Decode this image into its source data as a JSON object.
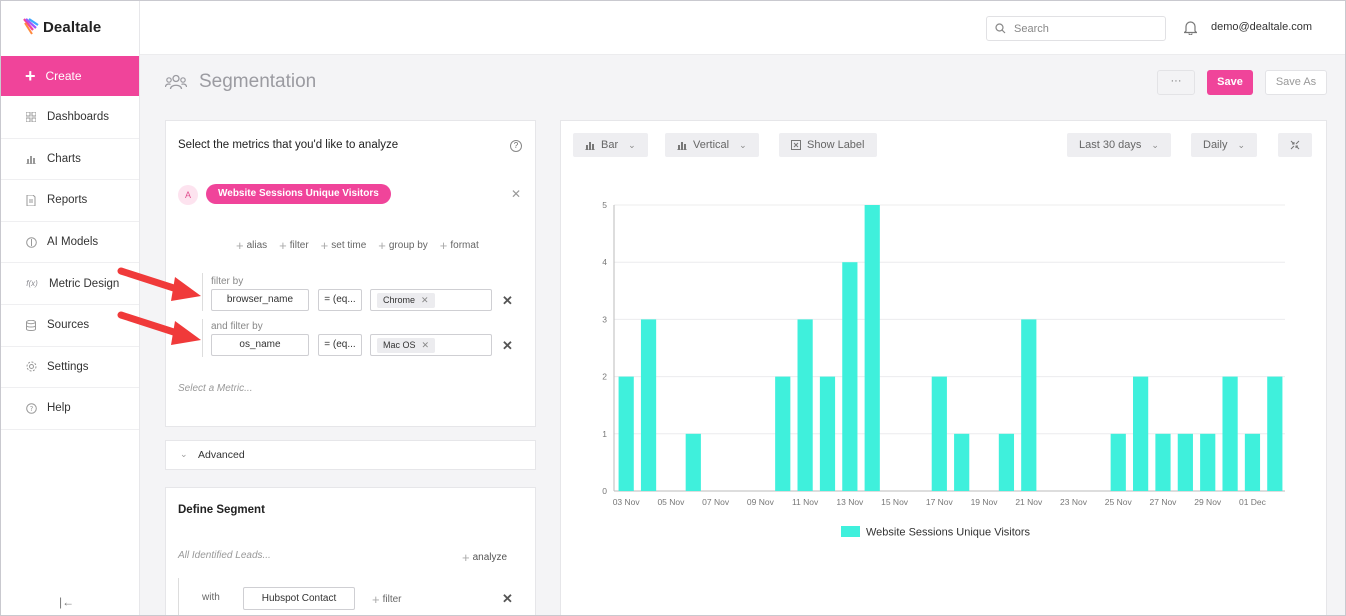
{
  "brand": {
    "name": "Dealtale"
  },
  "sidebar": {
    "create_label": "Create",
    "items": [
      {
        "label": "Dashboards",
        "icon": "grid-icon"
      },
      {
        "label": "Charts",
        "icon": "bar-chart-icon"
      },
      {
        "label": "Reports",
        "icon": "document-icon"
      },
      {
        "label": "AI Models",
        "icon": "ai-icon"
      },
      {
        "label": "Metric Design",
        "icon": "function-icon"
      },
      {
        "label": "Sources",
        "icon": "database-icon"
      },
      {
        "label": "Settings",
        "icon": "gear-icon"
      },
      {
        "label": "Help",
        "icon": "help-icon"
      }
    ],
    "collapse_glyph": "|←"
  },
  "topbar": {
    "search_placeholder": "Search",
    "user_email": "demo@dealtale.com"
  },
  "header": {
    "title": "Segmentation",
    "more_label": "···",
    "save_label": "Save",
    "save_as_label": "Save As"
  },
  "metrics": {
    "heading": "Select the metrics that you'd like to analyze",
    "help_glyph": "?",
    "letter": "A",
    "metric_name": "Website Sessions Unique Visitors",
    "options": [
      "alias",
      "filter",
      "set time",
      "group by",
      "format"
    ],
    "filters": [
      {
        "label": "filter by",
        "field": "browser_name",
        "operator": "= (eq...",
        "value": "Chrome"
      },
      {
        "label": "and filter by",
        "field": "os_name",
        "operator": "= (eq...",
        "value": "Mac OS"
      }
    ],
    "select_placeholder": "Select a Metric..."
  },
  "advanced": {
    "label": "Advanced"
  },
  "segment": {
    "title": "Define Segment",
    "leads_label": "All Identified Leads...",
    "analyze_label": "analyze",
    "with_label": "with",
    "contact_label": "Hubspot Contact",
    "filter_label": "filter"
  },
  "chart_toolbar": {
    "type_label": "Bar",
    "orientation_label": "Vertical",
    "show_label": "Show Label",
    "range_label": "Last 30 days",
    "interval_label": "Daily"
  },
  "colors": {
    "accent": "#f0449a",
    "bar": "#3ff0dc"
  },
  "chart_data": {
    "type": "bar",
    "title": "",
    "xlabel": "",
    "ylabel": "",
    "ylim": [
      0,
      5
    ],
    "yticks": [
      0,
      1,
      2,
      3,
      4,
      5
    ],
    "categories": [
      "03 Nov",
      "04 Nov",
      "05 Nov",
      "06 Nov",
      "07 Nov",
      "08 Nov",
      "09 Nov",
      "10 Nov",
      "11 Nov",
      "12 Nov",
      "13 Nov",
      "14 Nov",
      "15 Nov",
      "16 Nov",
      "17 Nov",
      "18 Nov",
      "19 Nov",
      "20 Nov",
      "21 Nov",
      "22 Nov",
      "23 Nov",
      "24 Nov",
      "25 Nov",
      "26 Nov",
      "27 Nov",
      "28 Nov",
      "29 Nov",
      "30 Nov",
      "01 Dec",
      "02 Dec"
    ],
    "tick_labels": [
      "03 Nov",
      "05 Nov",
      "07 Nov",
      "09 Nov",
      "11 Nov",
      "13 Nov",
      "15 Nov",
      "17 Nov",
      "19 Nov",
      "21 Nov",
      "23 Nov",
      "25 Nov",
      "27 Nov",
      "29 Nov",
      "01 Dec"
    ],
    "series": [
      {
        "name": "Website Sessions Unique Visitors",
        "values": [
          2,
          3,
          0,
          1,
          0,
          0,
          0,
          2,
          3,
          2,
          4,
          5,
          0,
          0,
          2,
          1,
          0,
          1,
          3,
          0,
          0,
          0,
          1,
          2,
          1,
          1,
          1,
          2,
          1,
          2
        ]
      }
    ],
    "legend": "bottom-center"
  }
}
